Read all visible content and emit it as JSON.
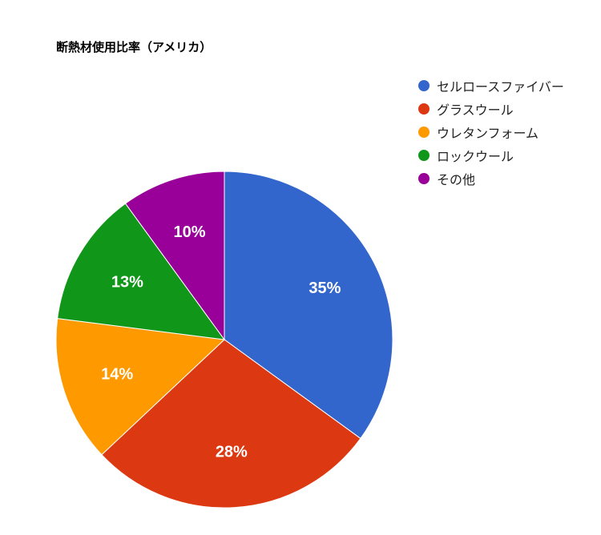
{
  "chart_data": {
    "type": "pie",
    "title": "断熱材使用比率（アメリカ）",
    "categories": [
      "セルロースファイバー",
      "グラスウール",
      "ウレタンフォーム",
      "ロックウール",
      "その他"
    ],
    "values": [
      35,
      28,
      14,
      13,
      10
    ],
    "labels": [
      "35%",
      "28%",
      "14%",
      "13%",
      "10%"
    ],
    "colors": [
      "#3366cc",
      "#dc3912",
      "#ff9900",
      "#109618",
      "#990099"
    ],
    "legend_position": "top-right"
  }
}
